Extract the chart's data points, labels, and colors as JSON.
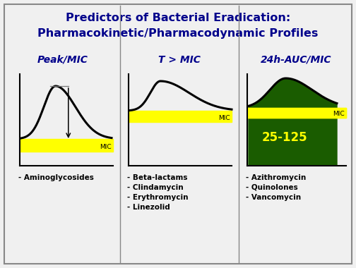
{
  "title_line1": "Predictors of Bacterial Eradication:",
  "title_line2": "Pharmacokinetic/Pharmacodynamic Profiles",
  "title_color": "#00008B",
  "title_fontsize": 11.5,
  "bg_color": "#F0F0F0",
  "border_color": "#888888",
  "divider_color": "#888888",
  "panel1": {
    "label": "Peak/MIC",
    "label_color": "#00008B",
    "mic_label": "MIC",
    "drug": "- Aminoglycosides",
    "yellow_color": "#FFFF00",
    "curve_color": "#000000",
    "arrow_color": "#000000"
  },
  "panel2": {
    "label": "T > MIC",
    "label_color": "#00008B",
    "mic_label": "MIC",
    "drugs": [
      "- Beta-lactams",
      "- Clindamycin",
      "- Erythromycin",
      "- Linezolid"
    ],
    "yellow_color": "#FFFF00",
    "red_color": "#DD0000",
    "curve_color": "#000000"
  },
  "panel3": {
    "label": "24h-AUC/MIC",
    "label_color": "#00008B",
    "mic_label": "MIC",
    "drugs": [
      "- Azithromycin",
      "- Quinolones",
      "- Vancomycin"
    ],
    "yellow_color": "#FFFF00",
    "fill_color": "#1A5C00",
    "text_color": "#FFFF00",
    "auc_label": "25-125",
    "curve_color": "#000000"
  },
  "drug_text_color": "#000000",
  "drug_fontsize": 7.5,
  "label_fontsize": 10
}
